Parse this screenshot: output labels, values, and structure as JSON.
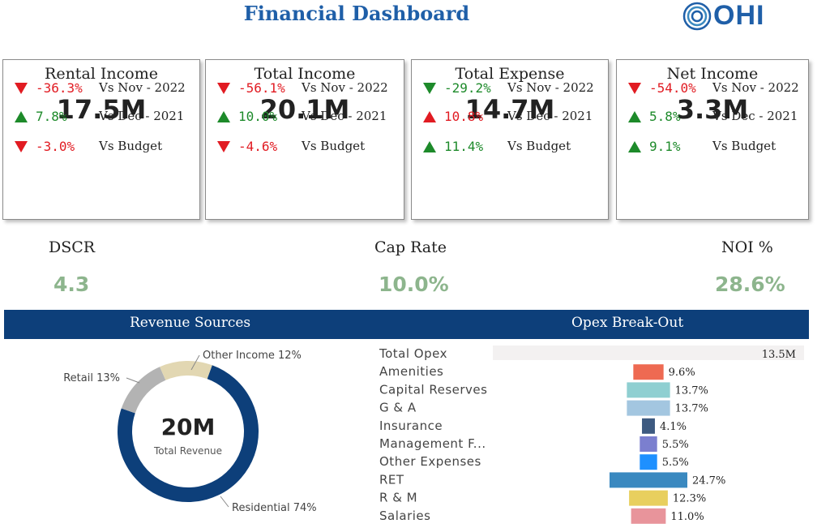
{
  "header": {
    "title": "Financial Dashboard",
    "logo_text": "OHI"
  },
  "kpis": [
    {
      "label": "Rental Income",
      "value": "17.5M",
      "comparisons": [
        {
          "direction": "down",
          "tone": "neg",
          "pct": "-36.3%",
          "label": "Vs Nov - 2022"
        },
        {
          "direction": "up",
          "tone": "pos",
          "pct": "7.8%",
          "label": "Vs Dec - 2021"
        },
        {
          "direction": "down",
          "tone": "neg",
          "pct": "-3.0%",
          "label": "Vs Budget"
        }
      ]
    },
    {
      "label": "Total Income",
      "value": "20.1M",
      "comparisons": [
        {
          "direction": "down",
          "tone": "neg",
          "pct": "-56.1%",
          "label": "Vs Nov - 2022"
        },
        {
          "direction": "up",
          "tone": "pos",
          "pct": "10.0%",
          "label": "Vs Dec - 2021"
        },
        {
          "direction": "down",
          "tone": "neg",
          "pct": "-4.6%",
          "label": "Vs Budget"
        }
      ]
    },
    {
      "label": "Total Expense",
      "value": "14.7M",
      "comparisons": [
        {
          "direction": "down",
          "tone": "pos-down",
          "pct": "-29.2%",
          "label": "Vs Nov - 2022"
        },
        {
          "direction": "up",
          "tone": "red",
          "pct": "10.8%",
          "label": "Vs Dec - 2021"
        },
        {
          "direction": "up",
          "tone": "pos",
          "pct": "11.4%",
          "label": "Vs Budget"
        }
      ]
    },
    {
      "label": "Net Income",
      "value": "3.3M",
      "comparisons": [
        {
          "direction": "down",
          "tone": "neg",
          "pct": "-54.0%",
          "label": "Vs Nov - 2022"
        },
        {
          "direction": "up",
          "tone": "pos",
          "pct": "5.8%",
          "label": "Vs Dec - 2021"
        },
        {
          "direction": "up",
          "tone": "pos",
          "pct": "9.1%",
          "label": "Vs Budget"
        }
      ]
    }
  ],
  "metrics": [
    {
      "label": "DSCR",
      "value": "4.3"
    },
    {
      "label": "Cap Rate",
      "value": "10.0%"
    },
    {
      "label": "NOI %",
      "value": "28.6%"
    }
  ],
  "sections": {
    "revenue_title": "Revenue Sources",
    "opex_title": "Opex  Break-Out"
  },
  "colors": {
    "navy": "#0d3f7a",
    "red": "#e11b22",
    "green": "#1d8a2a",
    "metric_green": "#8db58d"
  },
  "chart_data": [
    {
      "type": "pie",
      "center_value": "20M",
      "center_label": "Total Revenue",
      "slices": [
        {
          "label": "Residential 74%",
          "value": 74,
          "color": "#0d3f7a"
        },
        {
          "label": "Retail 13%",
          "value": 13,
          "color": "#b3b3b3"
        },
        {
          "label": "Other Income 12%",
          "value": 12,
          "color": "#e2d7b2"
        }
      ]
    },
    {
      "type": "bar",
      "orientation": "horizontal",
      "total": {
        "label": "Total Opex",
        "value_label": "13.5M"
      },
      "categories": [
        "Amenities",
        "Capital Reserves",
        "G & A",
        "Insurance",
        "Management F...",
        "Other Expenses",
        "RET",
        "R & M",
        "Salaries"
      ],
      "values": [
        9.6,
        13.7,
        13.7,
        4.1,
        5.5,
        5.5,
        24.7,
        12.3,
        11.0
      ],
      "value_labels": [
        "9.6%",
        "13.7%",
        "13.7%",
        "4.1%",
        "5.5%",
        "5.5%",
        "24.7%",
        "12.3%",
        "11.0%"
      ],
      "colors": [
        "#ee6a52",
        "#8fcfd1",
        "#a3c6e0",
        "#3d5a80",
        "#7b7fcf",
        "#1e90ff",
        "#3a89c0",
        "#e8cf5e",
        "#e8949b"
      ]
    }
  ]
}
